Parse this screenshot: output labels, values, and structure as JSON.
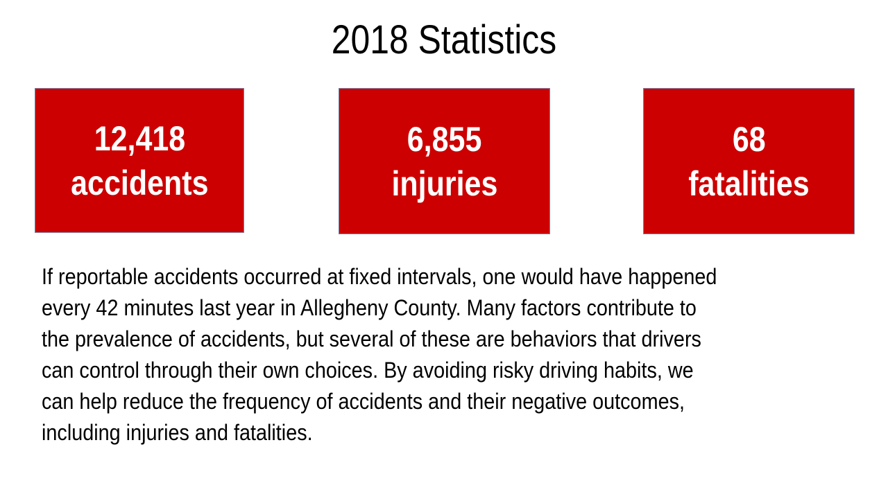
{
  "title": "2018 Statistics",
  "stats": [
    {
      "number": "12,418",
      "label": "accidents"
    },
    {
      "number": "6,855",
      "label": "injuries"
    },
    {
      "number": "68",
      "label": "fatalities"
    }
  ],
  "paragraph_lines": [
    "If reportable accidents occurred at fixed intervals, one would have happened",
    "every 42 minutes last year in Allegheny County. Many factors contribute to",
    "the prevalence of accidents, but several of these are behaviors that drivers",
    "can control through their own choices. By avoiding risky driving habits, we",
    "can help reduce the frequency of accidents and their negative outcomes,",
    "including injuries and fatalities."
  ],
  "colors": {
    "box_fill": "#cc0000",
    "box_text": "#ffffff",
    "body_text": "#000000",
    "background": "#ffffff"
  }
}
